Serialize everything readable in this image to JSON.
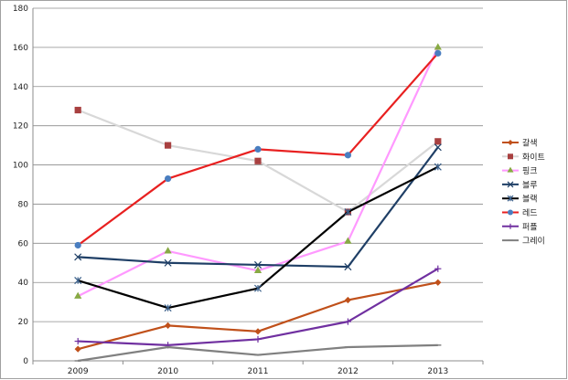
{
  "chart_data": {
    "type": "line",
    "categories": [
      "2009",
      "2010",
      "2011",
      "2012",
      "2013"
    ],
    "ylim": [
      0,
      180
    ],
    "yticks": [
      0,
      20,
      40,
      60,
      80,
      100,
      120,
      140,
      160,
      180
    ],
    "grid": true,
    "legend_position": "right",
    "series": [
      {
        "name": "갈색",
        "color": "#c0501a",
        "marker": "diamond",
        "values": [
          6,
          18,
          15,
          31,
          40
        ]
      },
      {
        "name": "화이트",
        "color": "#d8d8d8",
        "marker_color": "#a84040",
        "marker": "square",
        "values": [
          128,
          110,
          102,
          76,
          112
        ]
      },
      {
        "name": "핑크",
        "color": "#ff99ff",
        "marker_color": "#88aa44",
        "marker": "triangle",
        "values": [
          33,
          56,
          46,
          61,
          160
        ]
      },
      {
        "name": "블루",
        "color": "#1f3f66",
        "marker": "x",
        "values": [
          53,
          50,
          49,
          48,
          109
        ]
      },
      {
        "name": "블랙",
        "color": "#000000",
        "marker_color": "#3a5f8a",
        "marker": "star",
        "values": [
          41,
          27,
          37,
          76,
          99
        ]
      },
      {
        "name": "레드",
        "color": "#e82020",
        "marker_color": "#4a7ec0",
        "marker": "circle",
        "values": [
          59,
          93,
          108,
          105,
          157
        ]
      },
      {
        "name": "퍼플",
        "color": "#7030a0",
        "marker": "plus",
        "values": [
          10,
          8,
          11,
          20,
          47
        ]
      },
      {
        "name": "그레이",
        "color": "#808080",
        "marker": "dash",
        "values": [
          0,
          7,
          3,
          7,
          8
        ]
      }
    ]
  }
}
